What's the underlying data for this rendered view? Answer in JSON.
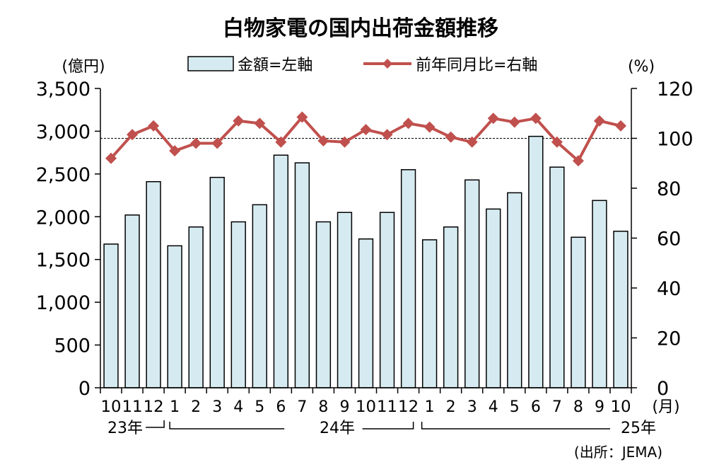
{
  "chart_data": {
    "type": "bar",
    "title": "白物家電の国内出荷金額推移",
    "left_axis_unit": "(億円)",
    "right_axis_unit": "(%)",
    "x_unit": "(月)",
    "source": "(出所：JEMA)",
    "categories": [
      "10",
      "11",
      "12",
      "1",
      "2",
      "3",
      "4",
      "5",
      "6",
      "7",
      "8",
      "9",
      "10",
      "11",
      "12",
      "1",
      "2",
      "3",
      "4",
      "5",
      "6",
      "7",
      "8",
      "9",
      "10"
    ],
    "year_labels": [
      "23年",
      "24年",
      "25年"
    ],
    "ylim_left": [
      0,
      3500
    ],
    "ylim_right": [
      0,
      120
    ],
    "yticks_left": [
      "0",
      "500",
      "1,000",
      "1,500",
      "2,000",
      "2,500",
      "3,000",
      "3,500"
    ],
    "yticks_right": [
      "0",
      "20",
      "40",
      "60",
      "80",
      "100",
      "120"
    ],
    "reference_line_right": 100,
    "series": [
      {
        "name": "金額=左軸",
        "type": "bar",
        "axis": "left",
        "color": "#d6ebf1",
        "values": [
          1680,
          2020,
          2410,
          1660,
          1880,
          2460,
          1940,
          2140,
          2720,
          2630,
          1940,
          2050,
          1740,
          2050,
          2550,
          1730,
          1880,
          2430,
          2090,
          2280,
          2940,
          2580,
          1760,
          2190,
          1830
        ]
      },
      {
        "name": "前年同月比=右軸",
        "type": "line",
        "axis": "right",
        "color": "#c0504d",
        "values": [
          92,
          101.5,
          105,
          95,
          98,
          98,
          107,
          106,
          98.5,
          108.5,
          99,
          98.5,
          103.5,
          101.5,
          106,
          104.5,
          100.5,
          98.5,
          108,
          106.5,
          108,
          98.5,
          91,
          107,
          105
        ]
      }
    ]
  }
}
